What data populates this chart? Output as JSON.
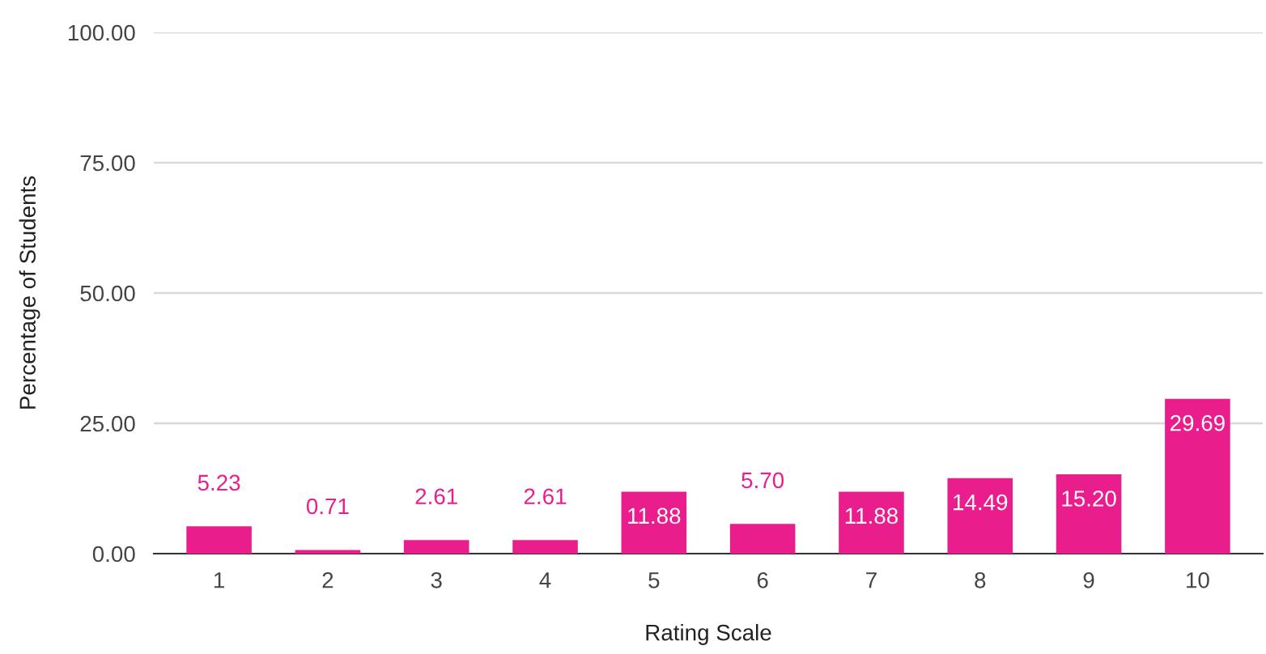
{
  "chart_data": {
    "type": "bar",
    "xlabel": "Rating Scale",
    "ylabel": "Percentage of Students",
    "categories": [
      "1",
      "2",
      "3",
      "4",
      "5",
      "6",
      "7",
      "8",
      "9",
      "10"
    ],
    "values": [
      5.23,
      0.71,
      2.61,
      2.61,
      11.88,
      5.7,
      11.88,
      14.49,
      15.2,
      29.69
    ],
    "value_labels": [
      "5.23",
      "0.71",
      "2.61",
      "2.61",
      "11.88",
      "5.70",
      "11.88",
      "14.49",
      "15.20",
      "29.69"
    ],
    "color": "#e91e8c",
    "ylim": [
      0,
      100
    ],
    "yticks": [
      {
        "value": 0,
        "label": "0.00"
      },
      {
        "value": 25,
        "label": "25.00"
      },
      {
        "value": 50,
        "label": "50.00"
      },
      {
        "value": 75,
        "label": "75.00"
      },
      {
        "value": 100,
        "label": "100.00"
      }
    ],
    "grid": "y",
    "legend": false
  }
}
